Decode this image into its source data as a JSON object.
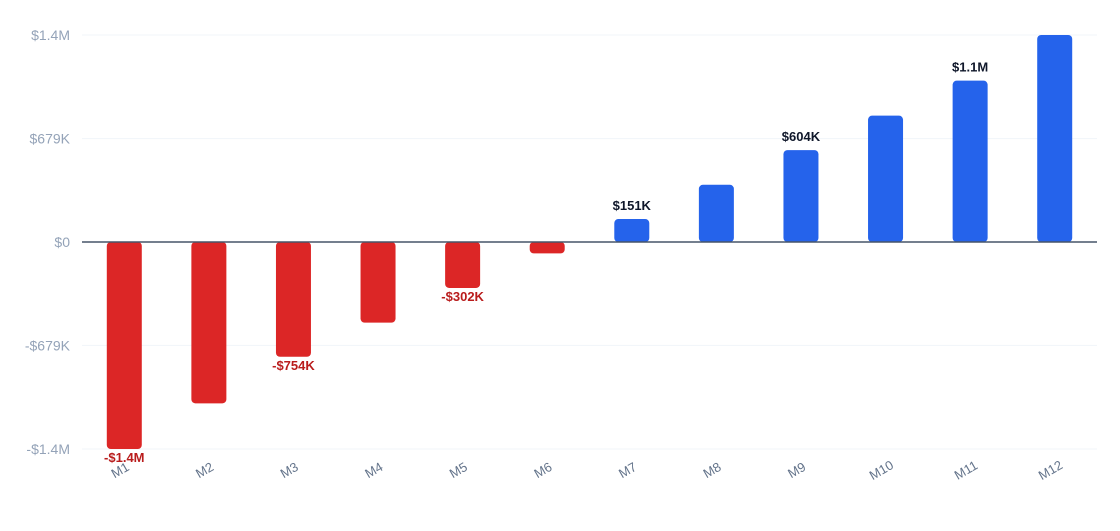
{
  "chart_data": {
    "type": "bar",
    "title": "",
    "xlabel": "",
    "ylabel": "",
    "categories": [
      "M1",
      "M2",
      "M3",
      "M4",
      "M5",
      "M6",
      "M7",
      "M8",
      "M9",
      "M10",
      "M11",
      "M12"
    ],
    "values": [
      -1360000,
      -1060000,
      -754000,
      -530000,
      -302000,
      -75000,
      151000,
      376000,
      604000,
      830000,
      1060000,
      1360000
    ],
    "ylim": [
      -1360000,
      1360000
    ],
    "y_ticks": [
      1360000,
      679000,
      0,
      -679000,
      -1360000
    ],
    "y_tick_labels": [
      "$1.4M",
      "$679K",
      "$0",
      "-$679K",
      "-$1.4M"
    ],
    "data_labels": [
      {
        "index": 0,
        "text": "-$1.4M"
      },
      {
        "index": 2,
        "text": "-$754K"
      },
      {
        "index": 4,
        "text": "-$302K"
      },
      {
        "index": 6,
        "text": "$151K"
      },
      {
        "index": 8,
        "text": "$604K"
      },
      {
        "index": 10,
        "text": "$1.1M"
      }
    ],
    "grid": true,
    "colors": {
      "positive": "#2563eb",
      "negative": "#dc2626",
      "positive_label": "#0f172a",
      "negative_label": "#b91c1c",
      "grid": "#f1f5f9",
      "zero_line": "#475569"
    }
  }
}
